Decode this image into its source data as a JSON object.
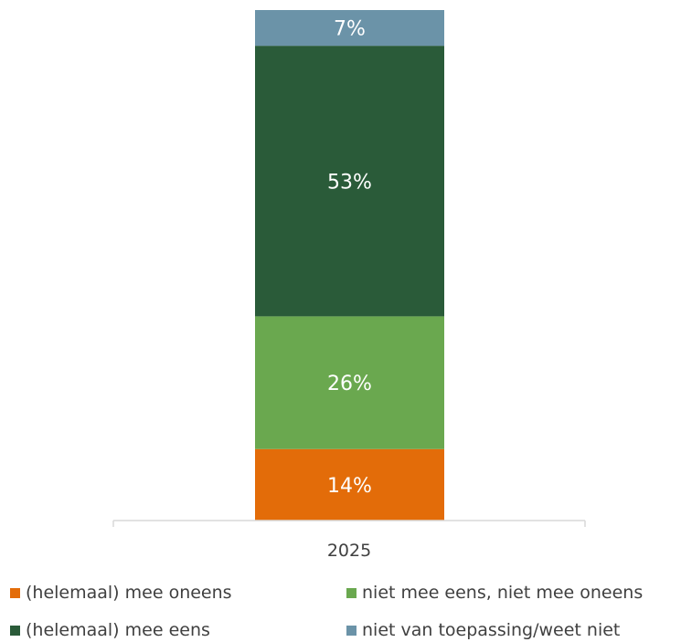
{
  "chart_data": {
    "type": "bar",
    "stacked": true,
    "categories": [
      "2025"
    ],
    "ylim": [
      0,
      100
    ],
    "grid": false,
    "legend_position": "bottom",
    "series": [
      {
        "name": "(helemaal) mee oneens",
        "values": [
          14
        ],
        "labels": [
          "14%"
        ],
        "color": "#E36C09"
      },
      {
        "name": "niet mee eens, niet mee oneens",
        "values": [
          26
        ],
        "labels": [
          "26%"
        ],
        "color": "#6AA84F"
      },
      {
        "name": "(helemaal) mee eens",
        "values": [
          53
        ],
        "labels": [
          "53%"
        ],
        "color": "#2A5B39"
      },
      {
        "name": "niet van toepassing/weet niet",
        "values": [
          7
        ],
        "labels": [
          "7%"
        ],
        "color": "#6B93A8"
      }
    ]
  }
}
